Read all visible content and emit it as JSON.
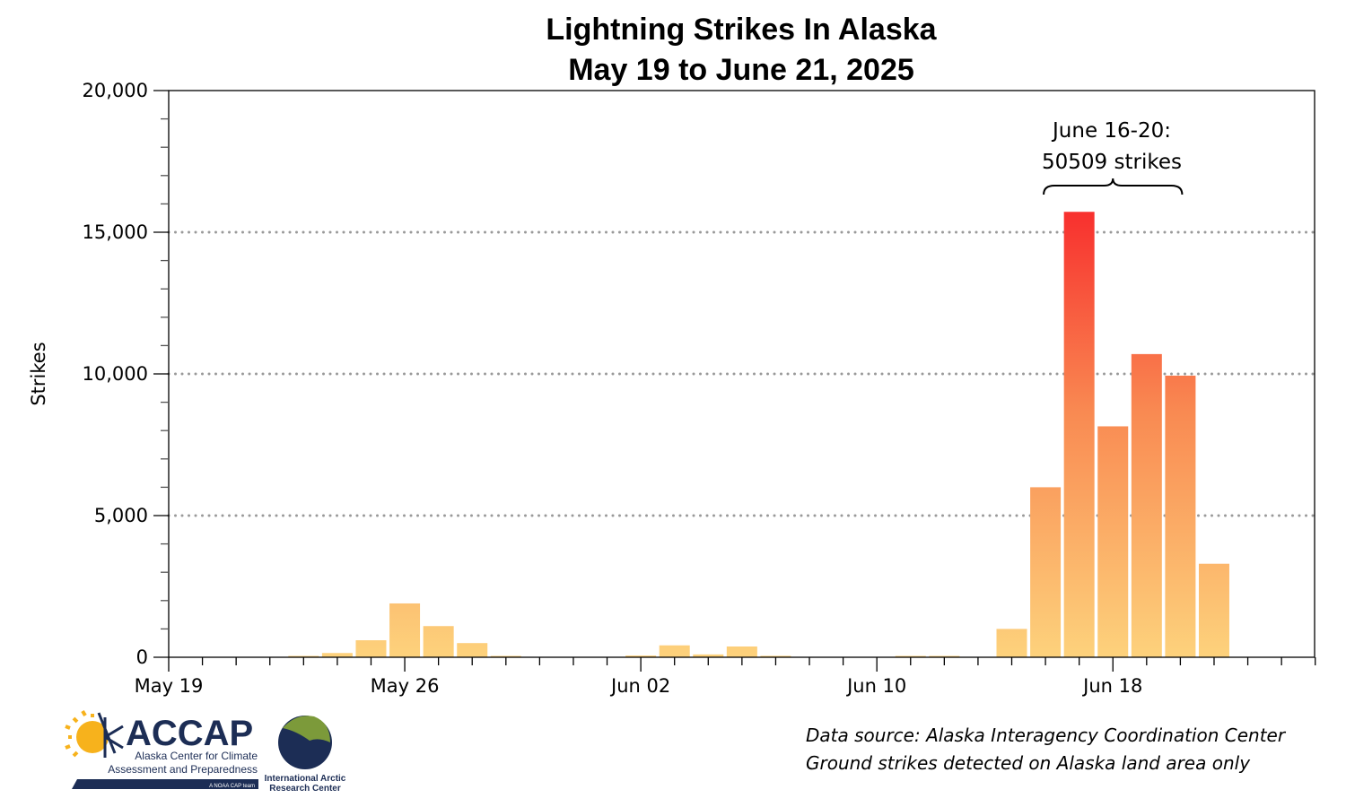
{
  "chart_data": {
    "type": "bar",
    "title": "Lightning Strikes In Alaska",
    "subtitle": "May 19 to June 21, 2025",
    "ylabel": "Strikes",
    "xlabel": "",
    "ylim": [
      0,
      20000
    ],
    "y_ticks": [
      "0",
      "5,000",
      "10,000",
      "15,000",
      "20,000"
    ],
    "y_tick_values": [
      0,
      5000,
      10000,
      15000,
      20000
    ],
    "x_tick_labels": [
      "May 19",
      "May 26",
      "Jun 02",
      "Jun 10",
      "Jun 18"
    ],
    "x_tick_every": 7,
    "grid": "dotted horizontal at 5,000 / 10,000 / 15,000",
    "values": [
      0,
      0,
      0,
      0,
      30,
      150,
      600,
      1900,
      1100,
      500,
      30,
      0,
      0,
      0,
      60,
      420,
      100,
      380,
      50,
      0,
      0,
      0,
      20,
      20,
      0,
      1000,
      6000,
      15720,
      8150,
      10700,
      9939,
      3300,
      0,
      0
    ],
    "colors": {
      "low": "#fdd27c",
      "mid": "#f98a52",
      "high": "#f8302e",
      "grid": "#999999"
    },
    "annotation": {
      "line1": "June 16-20:",
      "line2": "50509 strikes",
      "span_start_index": 26,
      "span_end_index": 30
    }
  },
  "footer": {
    "source_line1": "Data source: Alaska Interagency Coordination Center",
    "source_line2": "Ground strikes detected on Alaska land area only"
  },
  "logos": {
    "accap": {
      "name": "ACCAP",
      "line1": "Alaska Center for Climate",
      "line2": "Assessment and Preparedness",
      "tag": "A NOAA CAP team"
    },
    "iarc": {
      "line1": "International Arctic",
      "line2": "Research Center"
    }
  }
}
